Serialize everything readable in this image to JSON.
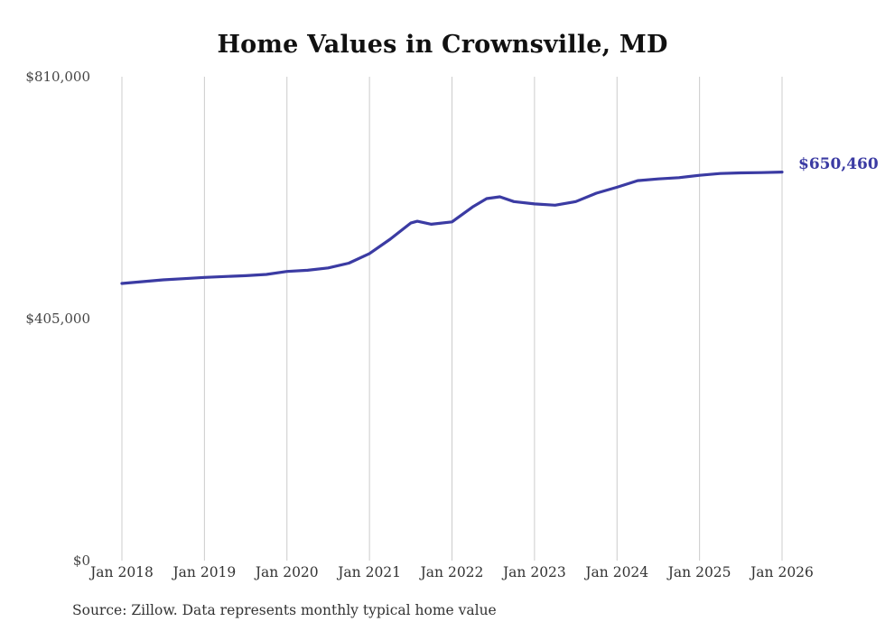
{
  "chart_data": {
    "type": "line",
    "title": "Home Values in Crownsville, MD",
    "source": "Source: Zillow. Data represents monthly typical home value",
    "end_label": "$650,460",
    "end_value": 650460,
    "line_color": "#3b3ba3",
    "grid_color": "#cccccc",
    "grid": "vertical-only",
    "legend": "none",
    "xlabel": "",
    "ylabel": "",
    "ylim": [
      0,
      810000
    ],
    "xlim": [
      2018,
      2026.1
    ],
    "y_ticks": [
      {
        "label": "$810,000",
        "value": 810000
      },
      {
        "label": "$405,000",
        "value": 405000
      },
      {
        "label": "$0",
        "value": 0
      }
    ],
    "x_ticks": [
      {
        "label": "Jan 2018",
        "year": 2018
      },
      {
        "label": "Jan 2019",
        "year": 2019
      },
      {
        "label": "Jan 2020",
        "year": 2020
      },
      {
        "label": "Jan 2021",
        "year": 2021
      },
      {
        "label": "Jan 2022",
        "year": 2022
      },
      {
        "label": "Jan 2023",
        "year": 2023
      },
      {
        "label": "Jan 2024",
        "year": 2024
      },
      {
        "label": "Jan 2025",
        "year": 2025
      },
      {
        "label": "Jan 2026",
        "year": 2026
      }
    ],
    "series": [
      {
        "name": "Monthly typical home value",
        "x": [
          2018.0,
          2018.25,
          2018.5,
          2018.75,
          2019.0,
          2019.25,
          2019.5,
          2019.75,
          2020.0,
          2020.25,
          2020.5,
          2020.75,
          2021.0,
          2021.25,
          2021.5,
          2021.58,
          2021.75,
          2022.0,
          2022.25,
          2022.42,
          2022.58,
          2022.75,
          2023.0,
          2023.25,
          2023.5,
          2023.75,
          2024.0,
          2024.25,
          2024.5,
          2024.75,
          2025.0,
          2025.25,
          2025.5,
          2025.75,
          2026.0
        ],
        "values": [
          464000,
          467000,
          470000,
          472000,
          474000,
          475500,
          477000,
          479000,
          484000,
          486000,
          490000,
          498000,
          514000,
          538000,
          565000,
          568000,
          563000,
          567000,
          592000,
          606000,
          609000,
          601000,
          597000,
          595000,
          601000,
          615000,
          625000,
          636000,
          639000,
          641000,
          645000,
          648000,
          649000,
          649500,
          650460
        ]
      }
    ]
  }
}
